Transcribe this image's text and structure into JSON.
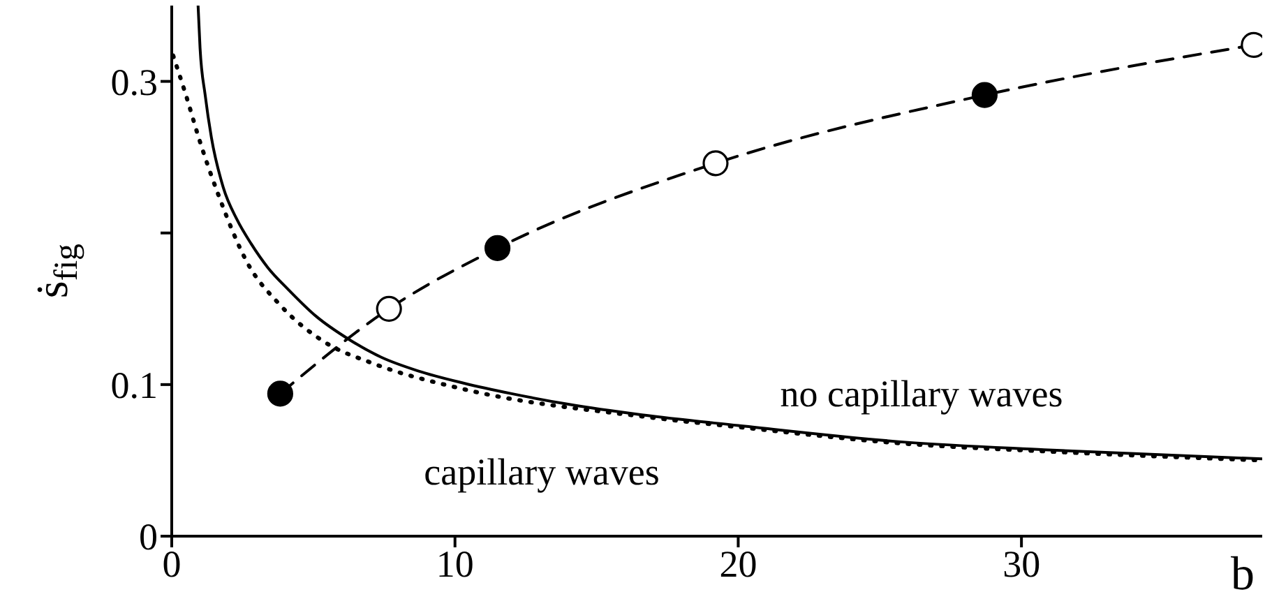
{
  "chart_data": {
    "type": "line",
    "xlabel": "b",
    "ylabel": "ṡ$_{fig}$",
    "xlim": [
      0,
      38.5
    ],
    "xticks": [
      0,
      10,
      20,
      30
    ],
    "ylim": [
      0,
      0.35
    ],
    "yticks": [
      0,
      0.1,
      {
        "value": 0.2,
        "label": null
      },
      0.3
    ],
    "annotations": [
      "no capillary waves",
      "capillary waves"
    ],
    "series": [
      {
        "color": "#000000",
        "line_style": "solid",
        "marker": "none",
        "x": [
          0.93,
          1.0,
          1.18,
          1.4,
          1.82,
          2.3,
          2.8,
          3.4,
          4.1,
          5.1,
          6.24,
          7.4,
          8.7,
          10.3,
          12,
          14,
          16.6,
          20,
          25.9,
          30.8,
          38.5
        ],
        "values": [
          0.35,
          0.322,
          0.291,
          0.263,
          0.23,
          0.209,
          0.193,
          0.177,
          0.163,
          0.145,
          0.13,
          0.118,
          0.109,
          0.101,
          0.094,
          0.087,
          0.08,
          0.073,
          0.062,
          0.057,
          0.051
        ]
      },
      {
        "color": "#000000",
        "line_style": "dotted",
        "marker": "none",
        "x": [
          0.05,
          0.5,
          1,
          1.67,
          2.65,
          3.8,
          5.4,
          7.1,
          10.3,
          16.6,
          20,
          25.9,
          30.8,
          38.5
        ],
        "values": [
          0.317,
          0.291,
          0.26,
          0.224,
          0.181,
          0.153,
          0.128,
          0.114,
          0.097,
          0.079,
          0.072,
          0.061,
          0.056,
          0.05
        ]
      },
      {
        "color": "#000000",
        "line_style": "dashed",
        "marker": "circle",
        "colors": [
          "#000000",
          "#ffffff",
          "#000000",
          "#ffffff",
          "#000000",
          "#ffffff"
        ],
        "x": [
          3.83,
          7.67,
          11.5,
          19.2,
          28.7,
          38.2
        ],
        "values": [
          0.094,
          0.15,
          0.19,
          0.246,
          0.291,
          0.324
        ]
      }
    ]
  }
}
